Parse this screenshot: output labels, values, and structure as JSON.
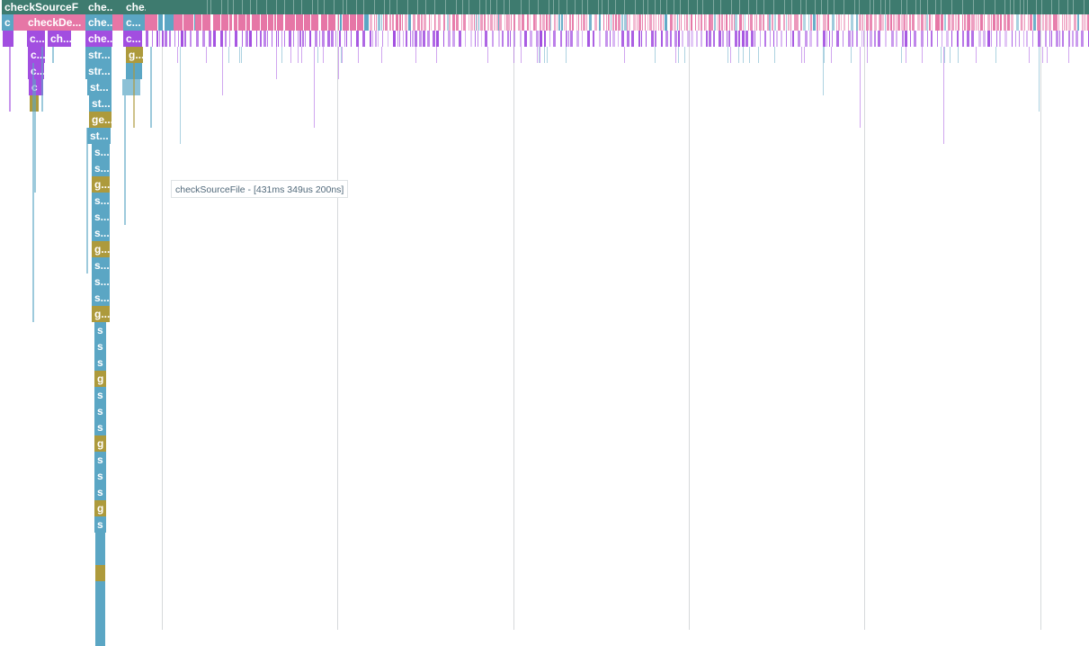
{
  "colors": {
    "root": "#3e7b6f",
    "pink": "#e676a6",
    "purple": "#a24ee0",
    "blue": "#5ba6c4",
    "olive": "#ad9a3c",
    "grid": "#d6d9db"
  },
  "tooltip": {
    "text": "checkSourceFile - [431ms 349us 200ns]"
  },
  "frames": {
    "root": "checkSourceF",
    "r0b": "che...",
    "r0c": "che...",
    "r1a": "c",
    "r1b": "checkDe...",
    "r1c": "che...",
    "r1d": "c...",
    "r2a": "c...",
    "r2b": "ch...",
    "r2c": "che...",
    "r2d": "c...",
    "r3a": "c...",
    "r3b": "str...",
    "r3c": "g...",
    "r4a": "c...",
    "r4b": "str...",
    "r5a": "c",
    "r5b": "st...",
    "r6b": "st...",
    "r7b": "ge...",
    "r8b": "st...",
    "stack": [
      "s...",
      "s...",
      "g...",
      "s...",
      "s...",
      "s...",
      "g...",
      "s...",
      "s...",
      "s...",
      "g...",
      "s",
      "s",
      "s",
      "g",
      "s",
      "s",
      "s",
      "g",
      "s",
      "s",
      "s",
      "g",
      "s"
    ]
  }
}
